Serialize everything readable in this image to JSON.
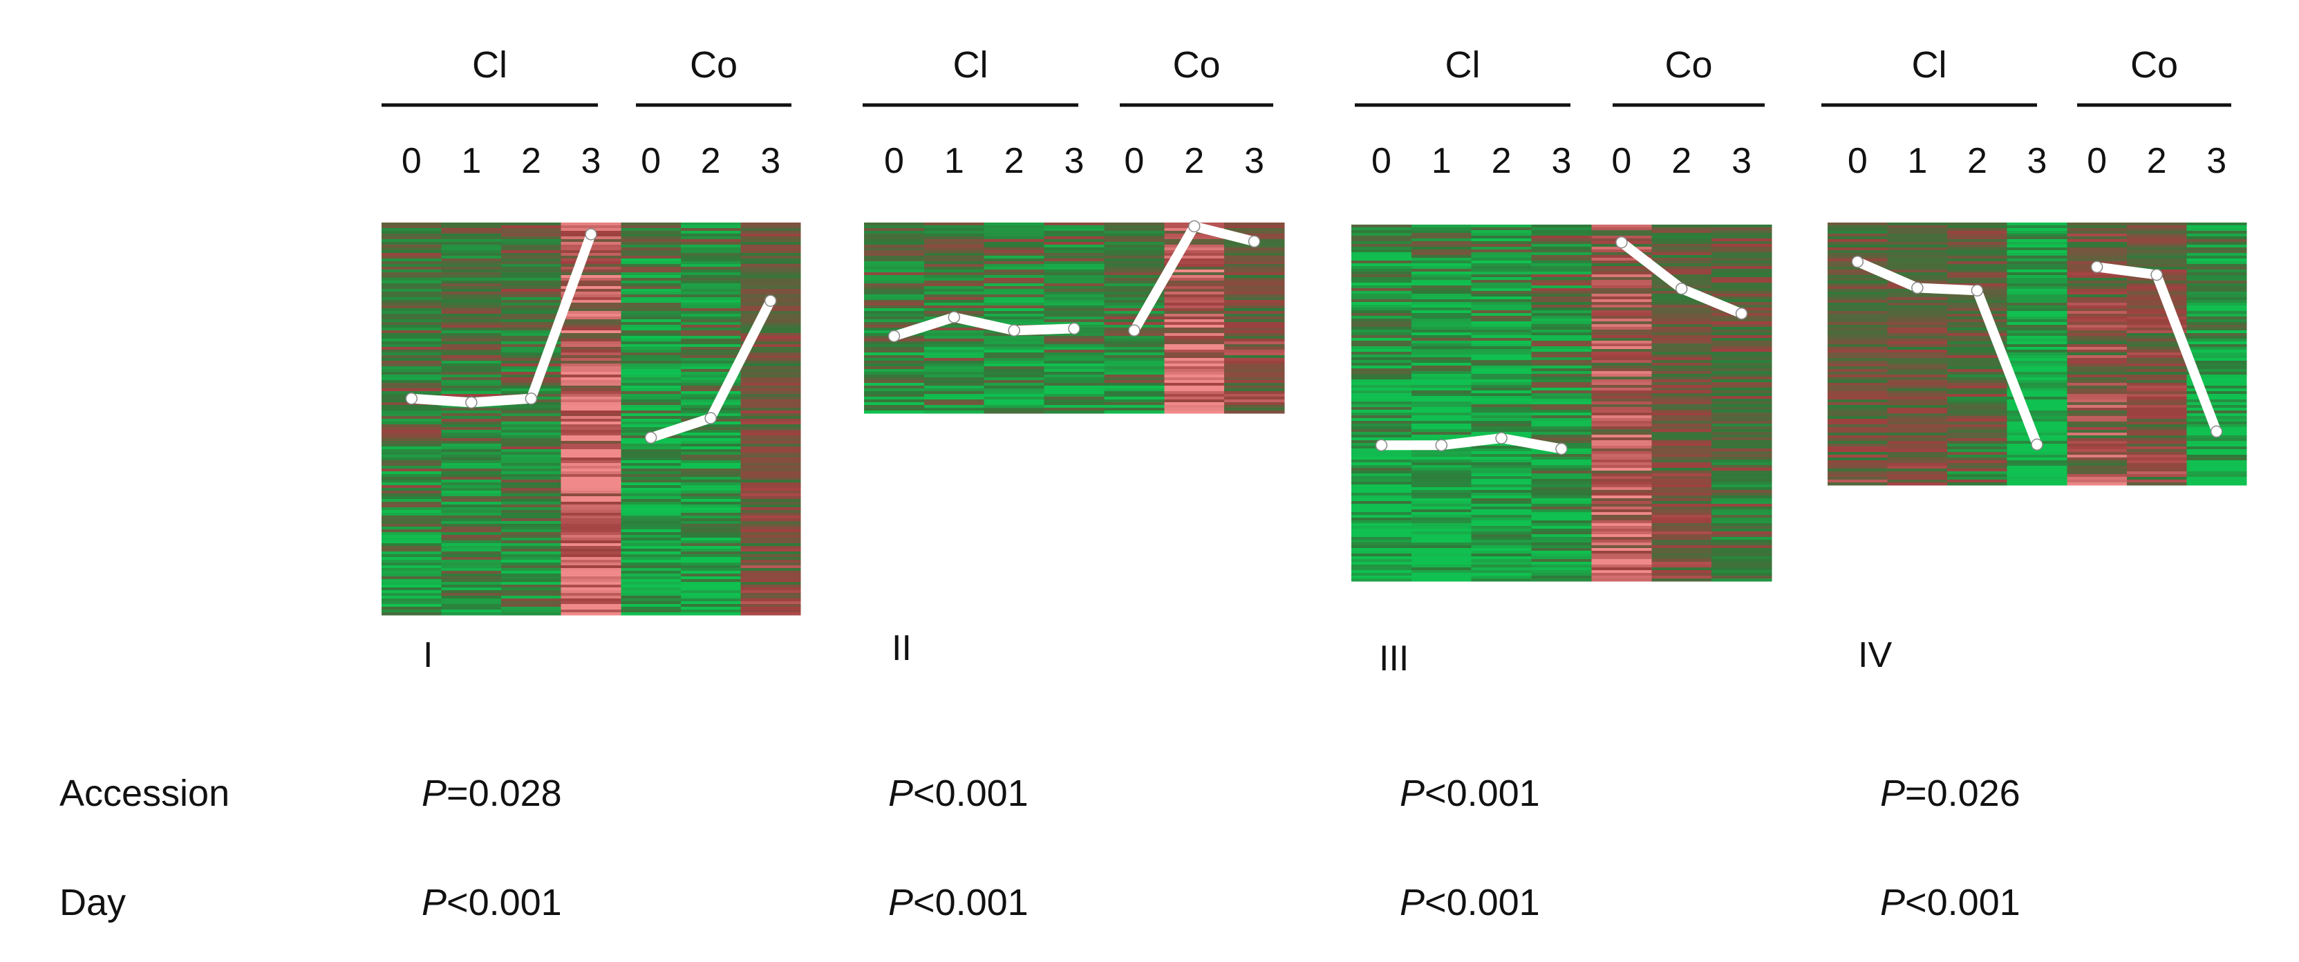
{
  "chart_data": {
    "type": "heatmap",
    "colors": {
      "high": "#f08a8a",
      "mid_red": "#a04040",
      "mid_green": "#2f7a3a",
      "low": "#10c050",
      "profile_line": "#ffffff"
    },
    "clusters": [
      {
        "id": "I",
        "label": "I",
        "groups": [
          {
            "name": "Cl",
            "days": [
              "0",
              "1",
              "2",
              "3"
            ]
          },
          {
            "name": "Co",
            "days": [
              "0",
              "2",
              "3"
            ]
          }
        ],
        "column_tone": [
          -0.45,
          -0.45,
          -0.4,
          0.75,
          -0.7,
          -0.65,
          0.1
        ],
        "profile": {
          "Cl": [
            0.55,
            0.54,
            0.55,
            0.97
          ],
          "Co": [
            0.45,
            0.5,
            0.8
          ]
        },
        "p_accession": {
          "prefix": "P",
          "rest": "=0.028"
        },
        "p_day": {
          "prefix": "P",
          "rest": "<0.001"
        }
      },
      {
        "id": "II",
        "label": "II",
        "groups": [
          {
            "name": "Cl",
            "days": [
              "0",
              "1",
              "2",
              "3"
            ]
          },
          {
            "name": "Co",
            "days": [
              "0",
              "2",
              "3"
            ]
          }
        ],
        "column_tone": [
          -0.5,
          -0.45,
          -0.55,
          -0.55,
          -0.45,
          0.7,
          0.2
        ],
        "profile": {
          "Cl": [
            0.4,
            0.5,
            0.43,
            0.44
          ],
          "Co": [
            0.43,
            0.98,
            0.9
          ]
        },
        "p_accession": {
          "prefix": "P",
          "rest": "<0.001"
        },
        "p_day": {
          "prefix": "P",
          "rest": "<0.001"
        }
      },
      {
        "id": "III",
        "label": "III",
        "groups": [
          {
            "name": "Cl",
            "days": [
              "0",
              "1",
              "2",
              "3"
            ]
          },
          {
            "name": "Co",
            "days": [
              "0",
              "2",
              "3"
            ]
          }
        ],
        "column_tone": [
          -0.75,
          -0.75,
          -0.75,
          -0.6,
          0.55,
          0.05,
          -0.2
        ],
        "profile": {
          "Cl": [
            0.38,
            0.38,
            0.4,
            0.37
          ],
          "Co": [
            0.95,
            0.82,
            0.75
          ]
        },
        "p_accession": {
          "prefix": "P",
          "rest": "<0.001"
        },
        "p_day": {
          "prefix": "P",
          "rest": "<0.001"
        }
      },
      {
        "id": "IV",
        "label": "IV",
        "groups": [
          {
            "name": "Cl",
            "days": [
              "0",
              "1",
              "2",
              "3"
            ]
          },
          {
            "name": "Co",
            "days": [
              "0",
              "2",
              "3"
            ]
          }
        ],
        "column_tone": [
          0.05,
          0.05,
          -0.2,
          -0.85,
          0.35,
          0.2,
          -0.75
        ],
        "profile": {
          "Cl": [
            0.85,
            0.75,
            0.74,
            0.15
          ],
          "Co": [
            0.83,
            0.8,
            0.2
          ]
        },
        "p_accession": {
          "prefix": "P",
          "rest": "=0.026"
        },
        "p_day": {
          "prefix": "P",
          "rest": "<0.001"
        }
      }
    ],
    "row_labels": {
      "accession": "Accession",
      "day": "Day"
    }
  }
}
